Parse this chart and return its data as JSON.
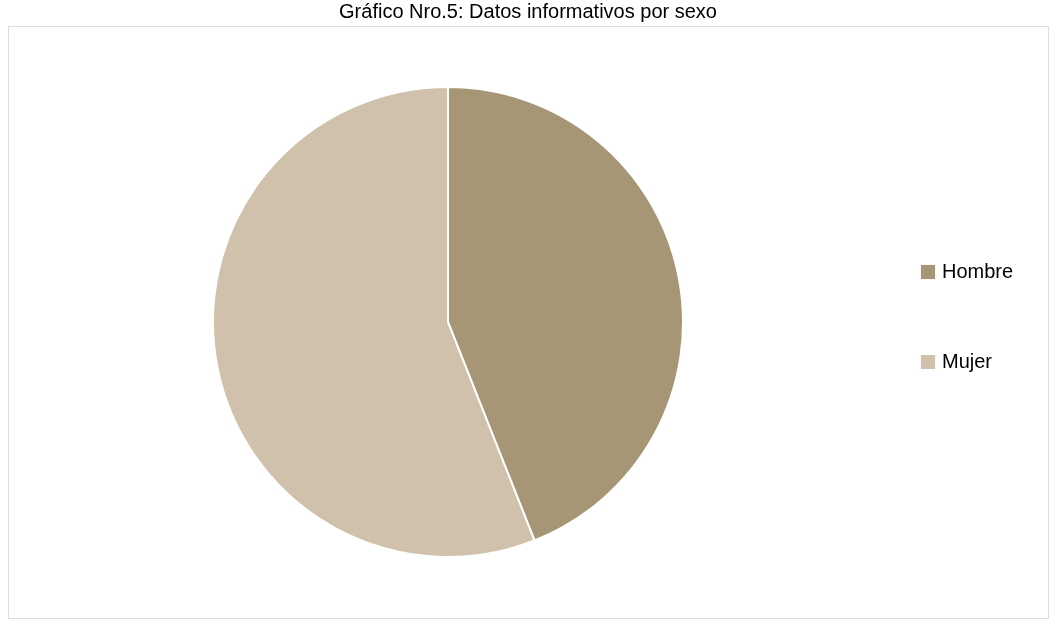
{
  "chart_data": {
    "type": "pie",
    "title": "Gráfico Nro.5: Datos informativos por sexo",
    "categories": [
      "Hombre",
      "Mujer"
    ],
    "values": [
      44,
      56
    ],
    "colors": [
      "#a69676",
      "#d0c1ac"
    ],
    "legend": "right"
  }
}
